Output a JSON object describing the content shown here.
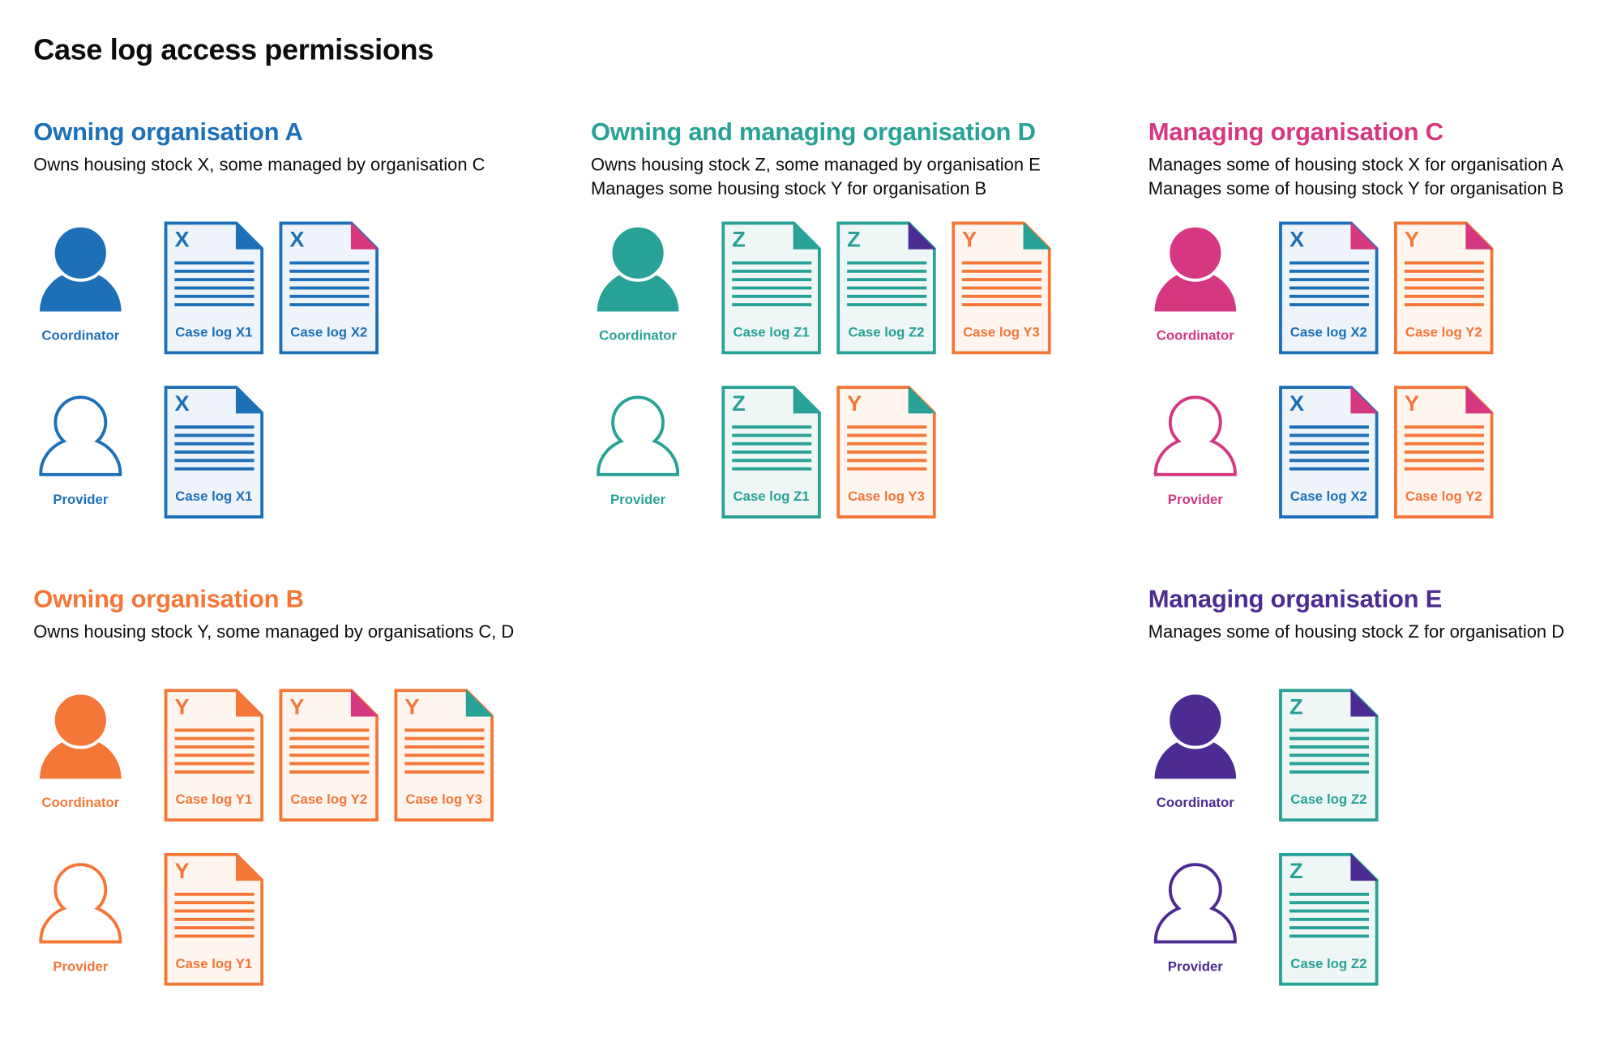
{
  "title": "Case log access permissions",
  "colors": {
    "blue": "#1d70b8",
    "teal": "#28a197",
    "pink": "#d53880",
    "orange": "#f47738",
    "purple": "#4c2c92"
  },
  "sections": [
    {
      "title": "Owning organisation A",
      "color": "#1d70b8",
      "description": [
        "Owns housing stock X, some managed by organisation C"
      ],
      "roles": [
        {
          "label": "Coordinator",
          "filled": true,
          "docs": [
            {
              "letter": "X",
              "label": "Case log X1",
              "color": "#1d70b8",
              "fold": "#1d70b8"
            },
            {
              "letter": "X",
              "label": "Case log X2",
              "color": "#1d70b8",
              "fold": "#d53880"
            }
          ]
        },
        {
          "label": "Provider",
          "filled": false,
          "docs": [
            {
              "letter": "X",
              "label": "Case log X1",
              "color": "#1d70b8",
              "fold": "#1d70b8"
            }
          ]
        }
      ]
    },
    {
      "title": "Owning and managing organisation D",
      "color": "#28a197",
      "description": [
        "Owns housing stock Z, some managed by organisation E",
        "Manages some housing stock Y for organisation B"
      ],
      "roles": [
        {
          "label": "Coordinator",
          "filled": true,
          "docs": [
            {
              "letter": "Z",
              "label": "Case log Z1",
              "color": "#28a197",
              "fold": "#28a197"
            },
            {
              "letter": "Z",
              "label": "Case log Z2",
              "color": "#28a197",
              "fold": "#4c2c92"
            },
            {
              "letter": "Y",
              "label": "Case log Y3",
              "color": "#f47738",
              "fold": "#28a197"
            }
          ]
        },
        {
          "label": "Provider",
          "filled": false,
          "docs": [
            {
              "letter": "Z",
              "label": "Case log Z1",
              "color": "#28a197",
              "fold": "#28a197"
            },
            {
              "letter": "Y",
              "label": "Case log Y3",
              "color": "#f47738",
              "fold": "#28a197"
            }
          ]
        }
      ]
    },
    {
      "title": "Managing organisation C",
      "color": "#d53880",
      "description": [
        "Manages some of housing stock X for organisation A",
        "Manages some of housing stock Y for organisation B"
      ],
      "roles": [
        {
          "label": "Coordinator",
          "filled": true,
          "docs": [
            {
              "letter": "X",
              "label": "Case log X2",
              "color": "#1d70b8",
              "fold": "#d53880"
            },
            {
              "letter": "Y",
              "label": "Case log Y2",
              "color": "#f47738",
              "fold": "#d53880"
            }
          ]
        },
        {
          "label": "Provider",
          "filled": false,
          "docs": [
            {
              "letter": "X",
              "label": "Case log X2",
              "color": "#1d70b8",
              "fold": "#d53880"
            },
            {
              "letter": "Y",
              "label": "Case log Y2",
              "color": "#f47738",
              "fold": "#d53880"
            }
          ]
        }
      ]
    },
    {
      "title": "Owning organisation B",
      "color": "#f47738",
      "description": [
        "Owns housing stock Y, some managed by organisations C, D"
      ],
      "roles": [
        {
          "label": "Coordinator",
          "filled": true,
          "docs": [
            {
              "letter": "Y",
              "label": "Case log Y1",
              "color": "#f47738",
              "fold": "#f47738"
            },
            {
              "letter": "Y",
              "label": "Case log Y2",
              "color": "#f47738",
              "fold": "#d53880"
            },
            {
              "letter": "Y",
              "label": "Case log Y3",
              "color": "#f47738",
              "fold": "#28a197"
            }
          ]
        },
        {
          "label": "Provider",
          "filled": false,
          "docs": [
            {
              "letter": "Y",
              "label": "Case log Y1",
              "color": "#f47738",
              "fold": "#f47738"
            }
          ]
        }
      ]
    },
    {
      "title": "Managing organisation E",
      "color": "#4c2c92",
      "description": [
        "Manages some of housing stock Z for organisation D"
      ],
      "roles": [
        {
          "label": "Coordinator",
          "filled": true,
          "docs": [
            {
              "letter": "Z",
              "label": "Case log Z2",
              "color": "#28a197",
              "fold": "#4c2c92"
            }
          ]
        },
        {
          "label": "Provider",
          "filled": false,
          "docs": [
            {
              "letter": "Z",
              "label": "Case log Z2",
              "color": "#28a197",
              "fold": "#4c2c92"
            }
          ]
        }
      ]
    }
  ]
}
